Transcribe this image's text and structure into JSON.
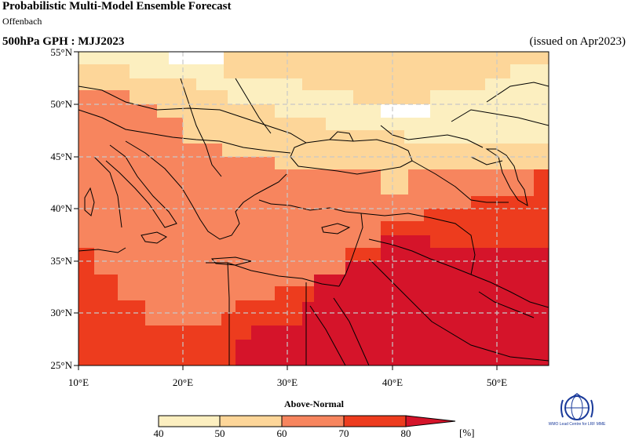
{
  "header": {
    "title": "Probabilistic Multi-Model Ensemble Forecast",
    "subtitle": "Offenbach",
    "variable": "500hPa GPH : MJJ2023",
    "issued": "(issued on Apr2023)"
  },
  "map": {
    "lat_labels": [
      "55°N",
      "50°N",
      "45°N",
      "40°N",
      "35°N",
      "30°N",
      "25°N"
    ],
    "lon_labels": [
      "10°E",
      "20°E",
      "30°E",
      "40°E",
      "50°E"
    ],
    "extent": {
      "lon_min": 10,
      "lon_max": 55,
      "lat_min": 25,
      "lat_max": 55
    },
    "grid_lines": "dashed",
    "category_colors": [
      "#ffffff",
      "#fcefc0",
      "#fdd699",
      "#f7855e",
      "#ed3c1e",
      "#d5142a"
    ]
  },
  "legend": {
    "title": "Above-Normal",
    "ticks": [
      "40",
      "50",
      "60",
      "70",
      "80"
    ],
    "unit": "[%]",
    "colors": [
      "#fcefc0",
      "#fdd699",
      "#f7855e",
      "#ed3c1e",
      "#d5142a"
    ]
  },
  "logo": {
    "icon": "wmo-emblem-icon",
    "caption": "WMO Lead Centre for LRF MME"
  }
}
